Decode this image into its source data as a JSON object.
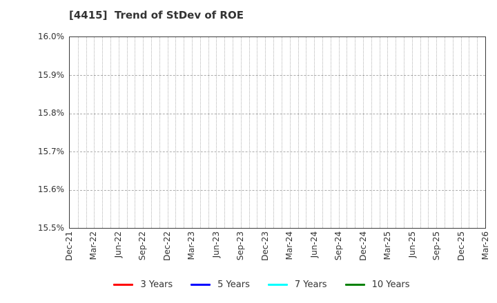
{
  "chart_data": {
    "type": "line",
    "title": "[4415]  Trend of StDev of ROE",
    "xlabel": "",
    "ylabel": "",
    "ylim": [
      15.5,
      16.0
    ],
    "y_tick_labels": [
      "16.0%",
      "15.9%",
      "15.8%",
      "15.7%",
      "15.6%",
      "15.5%"
    ],
    "x_tick_labels": [
      "Dec-21",
      "Mar-22",
      "Jun-22",
      "Sep-22",
      "Dec-22",
      "Mar-23",
      "Jun-23",
      "Sep-23",
      "Dec-23",
      "Mar-24",
      "Jun-24",
      "Sep-24",
      "Dec-24",
      "Mar-25",
      "Jun-25",
      "Sep-25",
      "Dec-25",
      "Mar-26"
    ],
    "months_per_x_tick": 3,
    "grid": true,
    "legend_position": "bottom",
    "series": [
      {
        "name": "3 Years",
        "color": "#ff0000",
        "values": []
      },
      {
        "name": "5 Years",
        "color": "#0000ff",
        "values": []
      },
      {
        "name": "7 Years",
        "color": "#00ffff",
        "values": []
      },
      {
        "name": "10 Years",
        "color": "#008000",
        "values": []
      }
    ],
    "plot_state": "empty - no data lines visible"
  },
  "colors": {
    "background": "#ffffff",
    "plot_border": "#3a3a3a",
    "grid": "#b3b3b3",
    "text": "#333333"
  }
}
